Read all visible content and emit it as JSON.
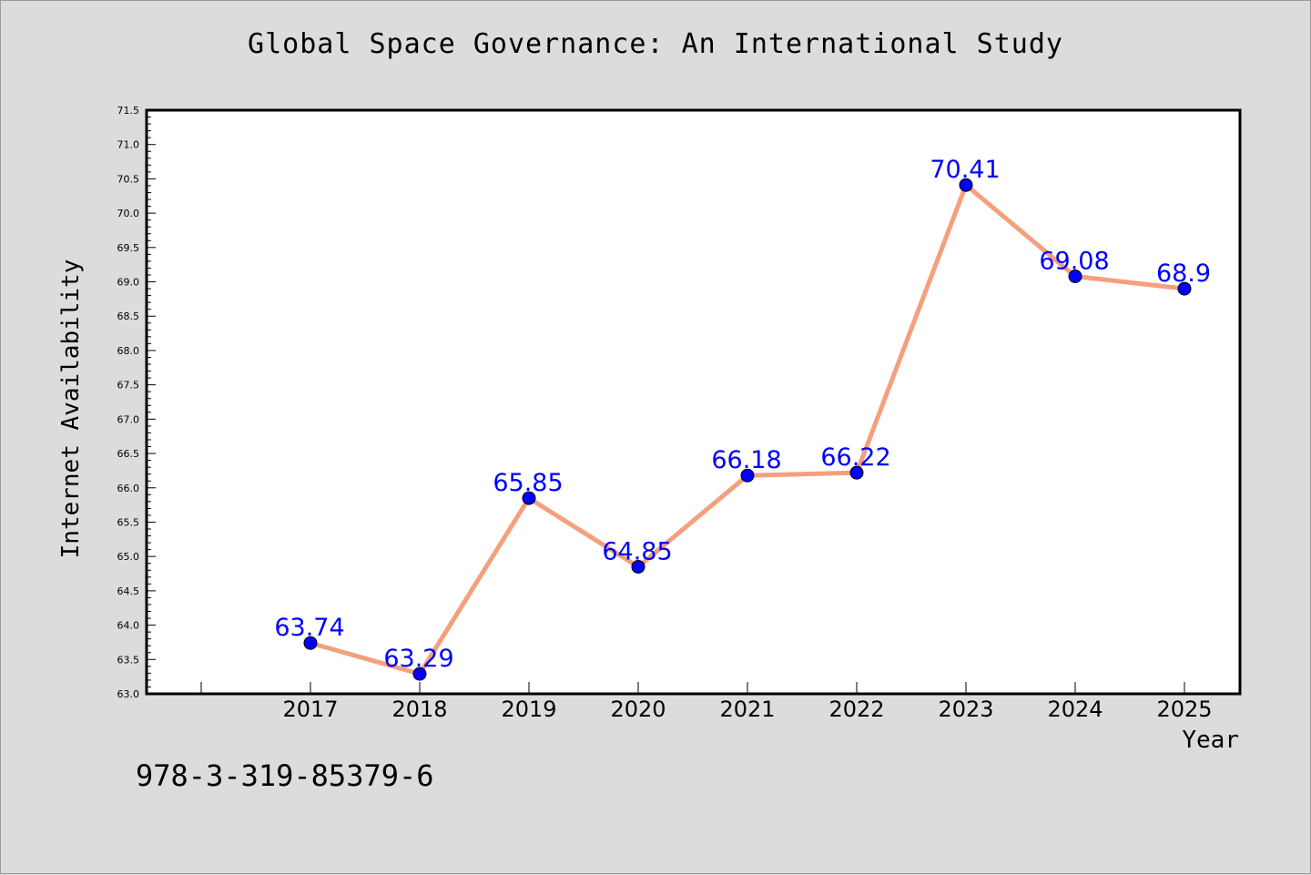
{
  "title": "Global Space Governance: An International Study",
  "footer_text": "978-3-319-85379-6",
  "colors": {
    "background": "#dcdcdc",
    "plot_background": "#ffffff",
    "line": "#f4a07c",
    "marker": "#0000ff",
    "data_label": "#0000ff"
  },
  "chart_data": {
    "type": "line",
    "title": "Global Space Governance: An International Study",
    "xlabel": "Year",
    "ylabel": "Internet Availability",
    "categories": [
      "2017",
      "2018",
      "2019",
      "2020",
      "2021",
      "2022",
      "2023",
      "2024",
      "2025"
    ],
    "series": [
      {
        "values": [
          63.74,
          63.29,
          65.85,
          64.85,
          66.18,
          66.22,
          70.41,
          69.08,
          68.9
        ],
        "labels": [
          "63.74",
          "63.29",
          "65.85",
          "64.85",
          "66.18",
          "66.22",
          "70.41",
          "69.08",
          "68.9"
        ]
      }
    ],
    "ylim": [
      63.0,
      71.5
    ],
    "yticks": [
      "63.0",
      "63.5",
      "64.0",
      "64.5",
      "65.0",
      "65.5",
      "66.0",
      "66.5",
      "67.0",
      "67.5",
      "68.0",
      "68.5",
      "69.0",
      "69.5",
      "70.0",
      "70.5",
      "71.0",
      "71.5"
    ],
    "grid": false,
    "legend": "none",
    "marker": "circle"
  }
}
